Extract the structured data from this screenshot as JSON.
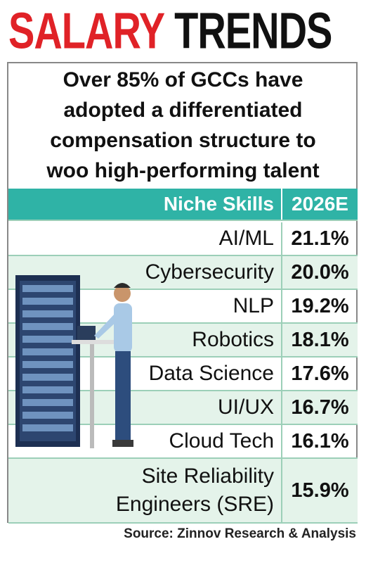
{
  "header": {
    "title_part1": "SALARY",
    "title_part2": "TRENDS",
    "subtitle_lines": [
      "Over 85% of GCCs have",
      "adopted a differentiated",
      "compensation structure to",
      "woo high-performing talent"
    ]
  },
  "table": {
    "columns": [
      "Niche Skills",
      "2026E"
    ],
    "rows": [
      [
        "AI/ML",
        "21.1%"
      ],
      [
        "Cybersecurity",
        "20.0%"
      ],
      [
        "NLP",
        "19.2%"
      ],
      [
        "Robotics",
        "18.1%"
      ],
      [
        "Data Science",
        "17.6%"
      ],
      [
        "UI/UX",
        "16.7%"
      ],
      [
        "Cloud Tech",
        "16.1%"
      ],
      [
        "Site Reliability Engineers (SRE)",
        "15.9%"
      ]
    ]
  },
  "source": "Source: Zinnov Research & Analysis"
}
